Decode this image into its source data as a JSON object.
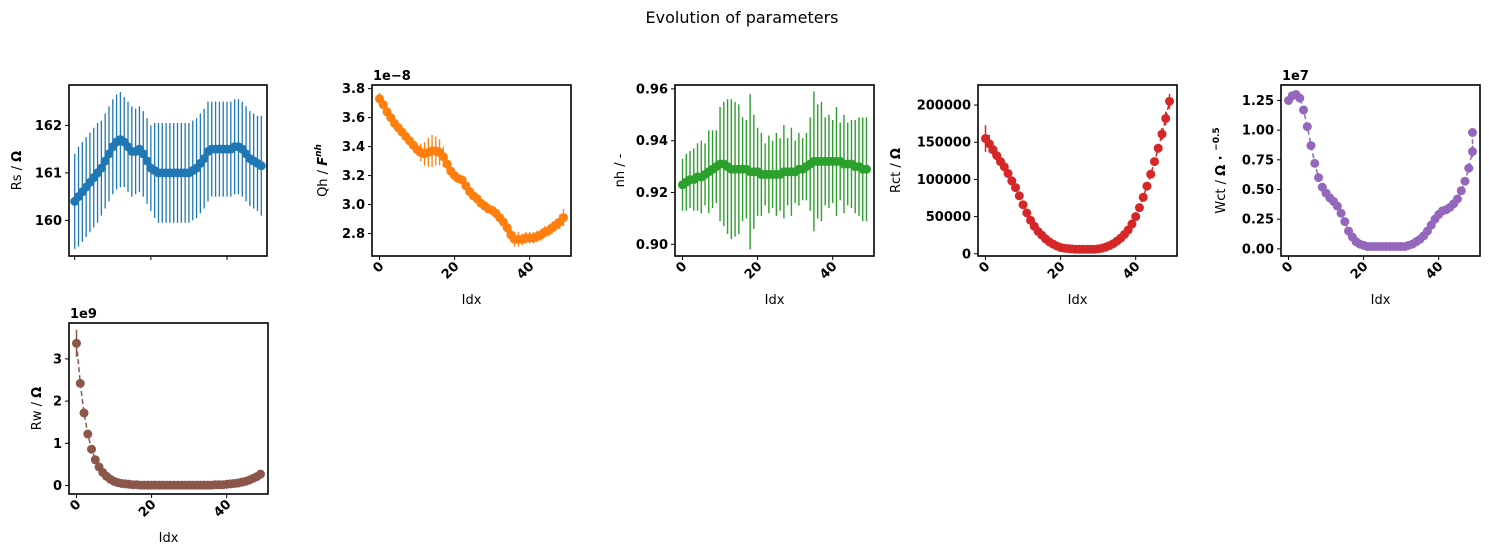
{
  "figure": {
    "title": "Evolution of parameters"
  },
  "chart_data": [
    {
      "type": "scatter",
      "id": "rs",
      "xlabel": "",
      "ylabel": "Rs / Ω",
      "ylabel_plain": "Rs / ",
      "ylabel_bold": "Ω",
      "color": "#1f77b4",
      "xlim": [
        -1.5,
        50.5
      ],
      "ylim": [
        159.25,
        162.85
      ],
      "xticks": [
        0,
        20,
        40
      ],
      "yticks": [
        160,
        161,
        162
      ],
      "ytick_labels": [
        "160",
        "161",
        "162"
      ],
      "show_xticklabels": false,
      "offset_text": "",
      "x": [
        0,
        1,
        2,
        3,
        4,
        5,
        6,
        7,
        8,
        9,
        10,
        11,
        12,
        13,
        14,
        15,
        16,
        17,
        18,
        19,
        20,
        21,
        22,
        23,
        24,
        25,
        26,
        27,
        28,
        29,
        30,
        31,
        32,
        33,
        34,
        35,
        36,
        37,
        38,
        39,
        40,
        41,
        42,
        43,
        44,
        45,
        46,
        47,
        48,
        49
      ],
      "y": [
        160.4,
        160.5,
        160.6,
        160.7,
        160.8,
        160.9,
        161.0,
        161.1,
        161.25,
        161.4,
        161.55,
        161.65,
        161.7,
        161.65,
        161.55,
        161.45,
        161.45,
        161.5,
        161.4,
        161.25,
        161.1,
        161.05,
        161.0,
        161.0,
        161.0,
        161.0,
        161.0,
        161.0,
        161.0,
        161.0,
        161.0,
        161.05,
        161.1,
        161.2,
        161.3,
        161.45,
        161.5,
        161.5,
        161.5,
        161.5,
        161.5,
        161.5,
        161.55,
        161.55,
        161.5,
        161.4,
        161.3,
        161.25,
        161.2,
        161.15
      ],
      "yerr": [
        1.0,
        1.05,
        1.05,
        1.05,
        1.05,
        1.05,
        1.05,
        1.0,
        1.0,
        1.0,
        1.0,
        1.0,
        1.0,
        0.95,
        0.95,
        0.95,
        0.9,
        0.9,
        0.9,
        0.9,
        0.9,
        1.0,
        1.05,
        1.05,
        1.05,
        1.05,
        1.05,
        1.05,
        1.05,
        1.05,
        1.05,
        1.05,
        1.05,
        1.05,
        1.05,
        1.05,
        1.0,
        1.0,
        1.0,
        1.0,
        1.0,
        1.0,
        1.0,
        1.0,
        1.0,
        1.0,
        1.0,
        1.0,
        1.0,
        1.05
      ],
      "connect": false,
      "bar_width": 1.3
    },
    {
      "type": "scatter",
      "id": "qh",
      "xlabel": "Idx",
      "ylabel": "Qh / F^nh",
      "ylabel_plain": "Qh / ",
      "ylabel_bold": "F",
      "ylabel_sup": "nh",
      "color": "#ff7f0e",
      "xlim": [
        -2,
        51
      ],
      "ylim": [
        2.645,
        3.825
      ],
      "xticks": [
        0,
        20,
        40
      ],
      "yticks": [
        2.8,
        3.0,
        3.2,
        3.4,
        3.6,
        3.8
      ],
      "ytick_labels": [
        "2.8",
        "3.0",
        "3.2",
        "3.4",
        "3.6",
        "3.8"
      ],
      "show_xticklabels": true,
      "offset_text": "1e−8",
      "x": [
        0,
        1,
        2,
        3,
        4,
        5,
        6,
        7,
        8,
        9,
        10,
        11,
        12,
        13,
        14,
        15,
        16,
        17,
        18,
        19,
        20,
        21,
        22,
        23,
        24,
        25,
        26,
        27,
        28,
        29,
        30,
        31,
        32,
        33,
        34,
        35,
        36,
        37,
        38,
        39,
        40,
        41,
        42,
        43,
        44,
        45,
        46,
        47,
        48,
        49
      ],
      "y": [
        3.73,
        3.69,
        3.64,
        3.6,
        3.56,
        3.53,
        3.5,
        3.47,
        3.44,
        3.41,
        3.38,
        3.36,
        3.35,
        3.36,
        3.37,
        3.37,
        3.36,
        3.33,
        3.28,
        3.23,
        3.2,
        3.18,
        3.17,
        3.13,
        3.09,
        3.06,
        3.04,
        3.01,
        2.99,
        2.97,
        2.96,
        2.94,
        2.91,
        2.88,
        2.84,
        2.79,
        2.76,
        2.76,
        2.76,
        2.77,
        2.77,
        2.77,
        2.78,
        2.79,
        2.81,
        2.82,
        2.84,
        2.86,
        2.88,
        2.91
      ],
      "yerr": [
        0.04,
        0.03,
        0.03,
        0.03,
        0.03,
        0.03,
        0.03,
        0.03,
        0.03,
        0.03,
        0.04,
        0.06,
        0.08,
        0.1,
        0.11,
        0.1,
        0.09,
        0.07,
        0.05,
        0.04,
        0.04,
        0.03,
        0.03,
        0.03,
        0.03,
        0.03,
        0.03,
        0.03,
        0.03,
        0.03,
        0.03,
        0.03,
        0.03,
        0.03,
        0.04,
        0.05,
        0.05,
        0.05,
        0.04,
        0.04,
        0.04,
        0.04,
        0.04,
        0.04,
        0.04,
        0.04,
        0.04,
        0.04,
        0.05,
        0.06
      ],
      "connect": true,
      "bar_width": 1.3
    },
    {
      "type": "scatter",
      "id": "nh",
      "xlabel": "Idx",
      "ylabel": "nh / -",
      "ylabel_plain": "nh / -",
      "ylabel_bold": "",
      "color": "#2ca02c",
      "xlim": [
        -2,
        51
      ],
      "ylim": [
        0.8955,
        0.9615
      ],
      "xticks": [
        0,
        20,
        40
      ],
      "yticks": [
        0.9,
        0.92,
        0.94,
        0.96
      ],
      "ytick_labels": [
        "0.90",
        "0.92",
        "0.94",
        "0.96"
      ],
      "show_xticklabels": true,
      "offset_text": "",
      "x": [
        0,
        1,
        2,
        3,
        4,
        5,
        6,
        7,
        8,
        9,
        10,
        11,
        12,
        13,
        14,
        15,
        16,
        17,
        18,
        19,
        20,
        21,
        22,
        23,
        24,
        25,
        26,
        27,
        28,
        29,
        30,
        31,
        32,
        33,
        34,
        35,
        36,
        37,
        38,
        39,
        40,
        41,
        42,
        43,
        44,
        45,
        46,
        47,
        48,
        49
      ],
      "y": [
        0.923,
        0.924,
        0.925,
        0.925,
        0.926,
        0.926,
        0.927,
        0.928,
        0.929,
        0.93,
        0.931,
        0.931,
        0.93,
        0.929,
        0.929,
        0.929,
        0.929,
        0.929,
        0.928,
        0.928,
        0.928,
        0.927,
        0.927,
        0.927,
        0.927,
        0.927,
        0.927,
        0.928,
        0.928,
        0.928,
        0.928,
        0.929,
        0.929,
        0.93,
        0.931,
        0.932,
        0.932,
        0.932,
        0.932,
        0.932,
        0.932,
        0.932,
        0.932,
        0.931,
        0.931,
        0.931,
        0.93,
        0.93,
        0.929,
        0.929
      ],
      "yerr": [
        0.01,
        0.011,
        0.011,
        0.012,
        0.013,
        0.014,
        0.012,
        0.016,
        0.015,
        0.014,
        0.022,
        0.024,
        0.026,
        0.027,
        0.026,
        0.025,
        0.02,
        0.019,
        0.03,
        0.022,
        0.017,
        0.016,
        0.012,
        0.015,
        0.013,
        0.016,
        0.014,
        0.018,
        0.013,
        0.017,
        0.012,
        0.014,
        0.012,
        0.013,
        0.018,
        0.027,
        0.022,
        0.023,
        0.017,
        0.018,
        0.016,
        0.021,
        0.015,
        0.019,
        0.016,
        0.017,
        0.018,
        0.019,
        0.02,
        0.02
      ],
      "connect": false,
      "bar_width": 1.4
    },
    {
      "type": "scatter",
      "id": "rct",
      "xlabel": "Idx",
      "ylabel": "Rct / Ω",
      "ylabel_plain": "Rct / ",
      "ylabel_bold": "Ω",
      "color": "#d62728",
      "xlim": [
        -2,
        51
      ],
      "ylim": [
        -3000,
        227000
      ],
      "xticks": [
        0,
        20,
        40
      ],
      "yticks": [
        0,
        50000,
        100000,
        150000,
        200000
      ],
      "ytick_labels": [
        "0",
        "50000",
        "100000",
        "150000",
        "200000"
      ],
      "show_xticklabels": true,
      "offset_text": "",
      "x": [
        0,
        1,
        2,
        3,
        4,
        5,
        6,
        7,
        8,
        9,
        10,
        11,
        12,
        13,
        14,
        15,
        16,
        17,
        18,
        19,
        20,
        21,
        22,
        23,
        24,
        25,
        26,
        27,
        28,
        29,
        30,
        31,
        32,
        33,
        34,
        35,
        36,
        37,
        38,
        39,
        40,
        41,
        42,
        43,
        44,
        45,
        46,
        47,
        48,
        49
      ],
      "y": [
        155000,
        148000,
        140000,
        132000,
        124000,
        117000,
        108000,
        98000,
        89000,
        78000,
        66000,
        55000,
        45000,
        37000,
        30000,
        25000,
        20000,
        16000,
        13000,
        10500,
        8500,
        7500,
        7000,
        6500,
        6000,
        6000,
        6000,
        6000,
        6000,
        6000,
        6500,
        7500,
        9000,
        11000,
        13500,
        17000,
        21000,
        26000,
        32000,
        40000,
        50000,
        62000,
        76000,
        91000,
        107000,
        124000,
        142000,
        161000,
        182000,
        205000
      ],
      "yerr": [
        18000,
        12000,
        8000,
        6000,
        5000,
        4000,
        3500,
        3000,
        3000,
        2500,
        2500,
        2500,
        2000,
        2000,
        2000,
        1800,
        1800,
        1500,
        1500,
        1500,
        1500,
        1500,
        1500,
        1500,
        1500,
        1500,
        1500,
        1500,
        1500,
        1500,
        1500,
        1500,
        1500,
        1500,
        1500,
        1800,
        1800,
        2000,
        2000,
        2500,
        2500,
        3000,
        3000,
        3500,
        4000,
        5000,
        6000,
        8000,
        9000,
        10000
      ],
      "connect": true,
      "bar_width": 1.5
    },
    {
      "type": "scatter",
      "id": "wct",
      "xlabel": "Idx",
      "ylabel": "Wct / Ω·s^-0.5",
      "ylabel_plain": "Wct / ",
      "ylabel_bold": "Ω · ",
      "ylabel_sup": "−0.5",
      "color": "#9467bd",
      "xlim": [
        -2,
        51
      ],
      "ylim": [
        -0.06,
        1.38
      ],
      "xticks": [
        0,
        20,
        40
      ],
      "yticks": [
        0.0,
        0.25,
        0.5,
        0.75,
        1.0,
        1.25
      ],
      "ytick_labels": [
        "0.00",
        "0.25",
        "0.50",
        "0.75",
        "1.00",
        "1.25"
      ],
      "show_xticklabels": true,
      "offset_text": "1e7",
      "x": [
        0,
        1,
        2,
        3,
        4,
        5,
        6,
        7,
        8,
        9,
        10,
        11,
        12,
        13,
        14,
        15,
        16,
        17,
        18,
        19,
        20,
        21,
        22,
        23,
        24,
        25,
        26,
        27,
        28,
        29,
        30,
        31,
        32,
        33,
        34,
        35,
        36,
        37,
        38,
        39,
        40,
        41,
        42,
        43,
        44,
        45,
        46,
        47,
        48,
        49
      ],
      "y": [
        1.25,
        1.29,
        1.3,
        1.27,
        1.17,
        1.03,
        0.87,
        0.72,
        0.6,
        0.52,
        0.47,
        0.43,
        0.4,
        0.36,
        0.3,
        0.23,
        0.15,
        0.1,
        0.06,
        0.04,
        0.03,
        0.02,
        0.02,
        0.02,
        0.02,
        0.02,
        0.02,
        0.02,
        0.02,
        0.02,
        0.02,
        0.02,
        0.03,
        0.04,
        0.06,
        0.08,
        0.11,
        0.15,
        0.2,
        0.25,
        0.29,
        0.32,
        0.33,
        0.35,
        0.38,
        0.42,
        0.49,
        0.57,
        0.68,
        0.82
      ],
      "y_last_extra": 0.98,
      "yerr": [
        0.02,
        0.02,
        0.02,
        0.02,
        0.02,
        0.03,
        0.03,
        0.02,
        0.02,
        0.02,
        0.02,
        0.02,
        0.02,
        0.02,
        0.02,
        0.02,
        0.01,
        0.01,
        0.01,
        0.01,
        0.01,
        0.01,
        0.01,
        0.01,
        0.01,
        0.01,
        0.01,
        0.01,
        0.01,
        0.01,
        0.01,
        0.01,
        0.01,
        0.01,
        0.01,
        0.01,
        0.01,
        0.01,
        0.01,
        0.01,
        0.01,
        0.01,
        0.01,
        0.01,
        0.01,
        0.02,
        0.02,
        0.03,
        0.04,
        0.05
      ],
      "connect": true,
      "bar_width": 1.3
    },
    {
      "type": "scatter",
      "id": "rw",
      "xlabel": "Idx",
      "ylabel": "Rw / Ω",
      "ylabel_plain": "Rw / ",
      "ylabel_bold": "Ω",
      "color": "#8c564b",
      "xlim": [
        -2,
        51
      ],
      "ylim": [
        -0.2,
        3.85
      ],
      "xticks": [
        0,
        20,
        40
      ],
      "yticks": [
        0,
        1,
        2,
        3
      ],
      "ytick_labels": [
        "0",
        "1",
        "2",
        "3"
      ],
      "show_xticklabels": true,
      "offset_text": "1e9",
      "x": [
        0,
        1,
        2,
        3,
        4,
        5,
        6,
        7,
        8,
        9,
        10,
        11,
        12,
        13,
        14,
        15,
        16,
        17,
        18,
        19,
        20,
        21,
        22,
        23,
        24,
        25,
        26,
        27,
        28,
        29,
        30,
        31,
        32,
        33,
        34,
        35,
        36,
        37,
        38,
        39,
        40,
        41,
        42,
        43,
        44,
        45,
        46,
        47,
        48,
        49
      ],
      "y": [
        3.37,
        2.42,
        1.72,
        1.22,
        0.86,
        0.61,
        0.44,
        0.31,
        0.22,
        0.15,
        0.1,
        0.07,
        0.05,
        0.04,
        0.03,
        0.02,
        0.02,
        0.01,
        0.01,
        0.01,
        0.01,
        0.01,
        0.01,
        0.01,
        0.01,
        0.01,
        0.01,
        0.01,
        0.01,
        0.01,
        0.01,
        0.01,
        0.01,
        0.01,
        0.01,
        0.01,
        0.01,
        0.02,
        0.02,
        0.02,
        0.03,
        0.04,
        0.05,
        0.06,
        0.08,
        0.1,
        0.13,
        0.17,
        0.21,
        0.27
      ],
      "yerr": [
        0.32,
        0.1,
        0.08,
        0.06,
        0.04,
        0.03,
        0.02,
        0.02,
        0.01,
        0.01,
        0.01,
        0.01,
        0.01,
        0.01,
        0.01,
        0.01,
        0.01,
        0.01,
        0.01,
        0.01,
        0.01,
        0.01,
        0.01,
        0.01,
        0.01,
        0.01,
        0.01,
        0.01,
        0.01,
        0.01,
        0.01,
        0.01,
        0.01,
        0.01,
        0.01,
        0.01,
        0.01,
        0.01,
        0.01,
        0.01,
        0.01,
        0.01,
        0.01,
        0.01,
        0.01,
        0.01,
        0.01,
        0.01,
        0.01,
        0.02
      ],
      "connect": true,
      "bar_width": 1.5
    }
  ]
}
